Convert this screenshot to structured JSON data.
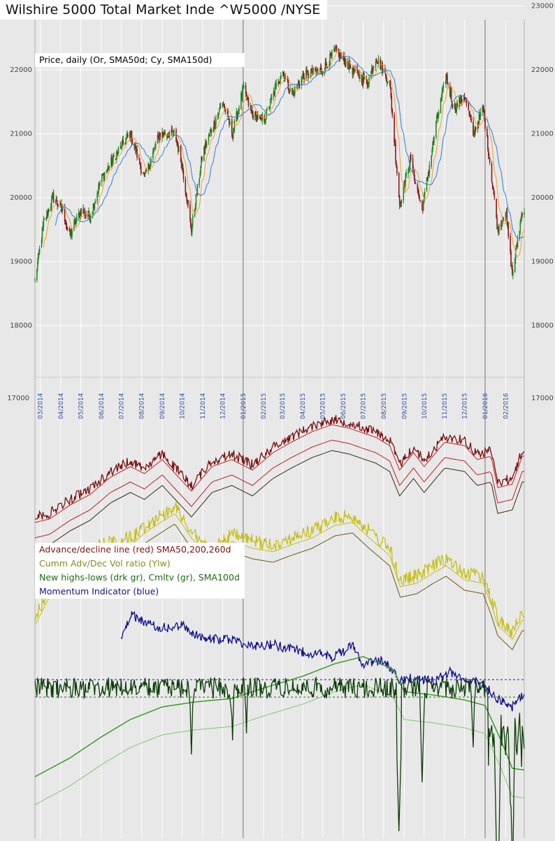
{
  "title": "Wilshire 5000 Total Market Inde ^W5000 /NYSE",
  "price_legend": "Price, daily (Or, SMA50d; Cy, SMA150d)",
  "indicator_legend": [
    {
      "label": "Advance/decline line (red) SMA50,200,260d",
      "color": "#7a1212"
    },
    {
      "label": "Cumm Adv/Dec Vol ratio (Ylw)",
      "color": "#8a8a20"
    },
    {
      "label": "New highs-lows (drk gr), Cmltv (gr), SMA100d",
      "color": "#1d6b10"
    },
    {
      "label": "Momentum Indicator (blue)",
      "color": "#121283"
    }
  ],
  "colors": {
    "price_up": "#1e8a1e",
    "price_down": "#8b1a1a",
    "sma50": "#f0a030",
    "sma150": "#2f7fd6",
    "sma_late": "#b5532a",
    "ad_line": "#7a1010",
    "ad_sma": "#c02020",
    "ad_sma260": "#3a2a10",
    "vol_ratio": "#c6c018",
    "vol_sma": "#6a5a10",
    "momentum": "#10108a",
    "nhl": "#0c3d08",
    "cmltv": "#2a9a18",
    "cmltv_sma": "#7fc870",
    "grid": "#ffffff",
    "vline": "#9a9a9a",
    "dashed_blue": "#1a1aa0",
    "dashed_green": "#2a6a1a"
  },
  "chart_data": [
    {
      "type": "candlestick",
      "title": "Price, daily (Or, SMA50d; Cy, SMA150d)",
      "y_tick_labels": [
        "18000",
        "19000",
        "20000",
        "21000",
        "22000",
        "23000"
      ],
      "ylim": [
        17000,
        23000
      ],
      "x_tick_labels": [
        "03/2014",
        "04/2014",
        "05/2014",
        "06/2014",
        "07/2014",
        "08/2014",
        "09/2014",
        "10/2014",
        "11/2014",
        "12/2014",
        "01/2015",
        "02/2015",
        "03/2015",
        "04/2015",
        "05/2015",
        "06/2015",
        "07/2015",
        "08/2015",
        "09/2015",
        "10/2015",
        "11/2015",
        "12/2015",
        "01/2016",
        "02/2016"
      ],
      "close_anchors": [
        [
          "2014-02-21",
          18700
        ],
        [
          "2014-03-06",
          19600
        ],
        [
          "2014-03-20",
          20000
        ],
        [
          "2014-04-04",
          19800
        ],
        [
          "2014-04-14",
          19400
        ],
        [
          "2014-05-01",
          19800
        ],
        [
          "2014-05-15",
          19700
        ],
        [
          "2014-06-01",
          20300
        ],
        [
          "2014-07-01",
          20800
        ],
        [
          "2014-07-15",
          21000
        ],
        [
          "2014-08-05",
          20300
        ],
        [
          "2014-08-28",
          21000
        ],
        [
          "2014-09-20",
          21000
        ],
        [
          "2014-10-01",
          20500
        ],
        [
          "2014-10-15",
          19500
        ],
        [
          "2014-11-01",
          20700
        ],
        [
          "2014-12-01",
          21500
        ],
        [
          "2014-12-16",
          21000
        ],
        [
          "2015-01-01",
          21700
        ],
        [
          "2015-01-15",
          21300
        ],
        [
          "2015-02-01",
          21200
        ],
        [
          "2015-03-01",
          22000
        ],
        [
          "2015-03-15",
          21600
        ],
        [
          "2015-04-01",
          21900
        ],
        [
          "2015-05-01",
          22000
        ],
        [
          "2015-05-20",
          22300
        ],
        [
          "2015-06-15",
          22000
        ],
        [
          "2015-07-08",
          21800
        ],
        [
          "2015-07-20",
          22200
        ],
        [
          "2015-08-10",
          21800
        ],
        [
          "2015-08-25",
          19900
        ],
        [
          "2015-09-10",
          20600
        ],
        [
          "2015-09-28",
          19800
        ],
        [
          "2015-10-20",
          21200
        ],
        [
          "2015-11-03",
          21900
        ],
        [
          "2015-11-15",
          21400
        ],
        [
          "2015-12-01",
          21600
        ],
        [
          "2015-12-14",
          21000
        ],
        [
          "2015-12-29",
          21400
        ],
        [
          "2016-01-10",
          20400
        ],
        [
          "2016-01-20",
          19500
        ],
        [
          "2016-02-01",
          19800
        ],
        [
          "2016-02-11",
          18800
        ],
        [
          "2016-02-26",
          19800
        ]
      ],
      "series": [
        {
          "name": "SMA50d",
          "color_key": "sma50"
        },
        {
          "name": "SMA150d",
          "color_key": "sma150"
        }
      ]
    },
    {
      "type": "line",
      "title": "Advance/decline line (red) SMA50,200,260d",
      "anchors": [
        [
          "2014-02-21",
          740
        ],
        [
          "2014-03-15",
          735
        ],
        [
          "2014-04-15",
          715
        ],
        [
          "2014-05-15",
          700
        ],
        [
          "2014-06-15",
          675
        ],
        [
          "2014-07-15",
          660
        ],
        [
          "2014-08-05",
          670
        ],
        [
          "2014-09-01",
          650
        ],
        [
          "2014-10-15",
          695
        ],
        [
          "2014-11-15",
          660
        ],
        [
          "2014-12-15",
          650
        ],
        [
          "2015-01-15",
          665
        ],
        [
          "2015-02-15",
          640
        ],
        [
          "2015-03-15",
          625
        ],
        [
          "2015-04-15",
          610
        ],
        [
          "2015-05-15",
          600
        ],
        [
          "2015-06-10",
          605
        ],
        [
          "2015-07-01",
          612
        ],
        [
          "2015-07-20",
          618
        ],
        [
          "2015-08-10",
          630
        ],
        [
          "2015-08-25",
          665
        ],
        [
          "2015-09-15",
          640
        ],
        [
          "2015-10-01",
          660
        ],
        [
          "2015-11-01",
          625
        ],
        [
          "2015-12-01",
          630
        ],
        [
          "2015-12-20",
          650
        ],
        [
          "2016-01-10",
          645
        ],
        [
          "2016-01-20",
          690
        ],
        [
          "2016-02-11",
          685
        ],
        [
          "2016-02-26",
          645
        ]
      ]
    },
    {
      "type": "line",
      "title": "Cumm Adv/Dec Vol ratio (Ylw)",
      "anchors": [
        [
          "2014-02-21",
          885
        ],
        [
          "2014-03-20",
          835
        ],
        [
          "2014-05-01",
          800
        ],
        [
          "2014-06-01",
          780
        ],
        [
          "2014-07-15",
          770
        ],
        [
          "2014-08-10",
          750
        ],
        [
          "2014-09-20",
          725
        ],
        [
          "2014-10-15",
          760
        ],
        [
          "2014-11-15",
          790
        ],
        [
          "2014-12-15",
          765
        ],
        [
          "2015-01-15",
          775
        ],
        [
          "2015-02-15",
          780
        ],
        [
          "2015-03-15",
          770
        ],
        [
          "2015-04-15",
          760
        ],
        [
          "2015-05-20",
          742
        ],
        [
          "2015-06-15",
          738
        ],
        [
          "2015-07-10",
          760
        ],
        [
          "2015-08-10",
          785
        ],
        [
          "2015-08-26",
          830
        ],
        [
          "2015-09-20",
          825
        ],
        [
          "2015-10-15",
          810
        ],
        [
          "2015-11-03",
          800
        ],
        [
          "2015-12-01",
          820
        ],
        [
          "2015-12-29",
          825
        ],
        [
          "2016-01-10",
          855
        ],
        [
          "2016-01-20",
          885
        ],
        [
          "2016-02-11",
          905
        ],
        [
          "2016-02-26",
          878
        ]
      ]
    },
    {
      "type": "line",
      "title": "Momentum Indicator (blue)",
      "anchors": [
        [
          "2014-07-01",
          915
        ],
        [
          "2014-07-15",
          880
        ],
        [
          "2014-08-15",
          895
        ],
        [
          "2014-09-10",
          900
        ],
        [
          "2014-10-01",
          895
        ],
        [
          "2014-11-01",
          915
        ],
        [
          "2014-12-15",
          915
        ],
        [
          "2015-01-15",
          925
        ],
        [
          "2015-02-15",
          922
        ],
        [
          "2015-03-15",
          930
        ],
        [
          "2015-04-15",
          935
        ],
        [
          "2015-05-15",
          940
        ],
        [
          "2015-06-15",
          925
        ],
        [
          "2015-07-01",
          950
        ],
        [
          "2015-08-01",
          945
        ],
        [
          "2015-08-25",
          975
        ],
        [
          "2015-09-15",
          970
        ],
        [
          "2015-10-15",
          975
        ],
        [
          "2015-11-10",
          962
        ],
        [
          "2015-12-01",
          972
        ],
        [
          "2015-12-29",
          980
        ],
        [
          "2016-01-20",
          1000
        ],
        [
          "2016-02-11",
          1012
        ],
        [
          "2016-02-26",
          995
        ]
      ]
    },
    {
      "type": "line",
      "title": "New highs-lows (drk gr), Cmltv (gr), SMA100d",
      "reference_lines": [
        "blue dashed",
        "green dashed"
      ],
      "cumulative_anchors": [
        [
          "2014-02-21",
          1112
        ],
        [
          "2014-04-15",
          1085
        ],
        [
          "2014-06-01",
          1055
        ],
        [
          "2014-07-15",
          1030
        ],
        [
          "2014-09-01",
          1012
        ],
        [
          "2014-10-20",
          1005
        ],
        [
          "2014-12-15",
          1000
        ],
        [
          "2015-02-01",
          985
        ],
        [
          "2015-04-01",
          968
        ],
        [
          "2015-05-20",
          950
        ],
        [
          "2015-07-01",
          940
        ],
        [
          "2015-08-15",
          958
        ],
        [
          "2015-09-01",
          990
        ],
        [
          "2015-10-15",
          995
        ],
        [
          "2015-12-01",
          1002
        ],
        [
          "2016-01-01",
          1010
        ],
        [
          "2016-01-25",
          1060
        ],
        [
          "2016-02-11",
          1100
        ],
        [
          "2016-02-26",
          1102
        ]
      ]
    }
  ]
}
